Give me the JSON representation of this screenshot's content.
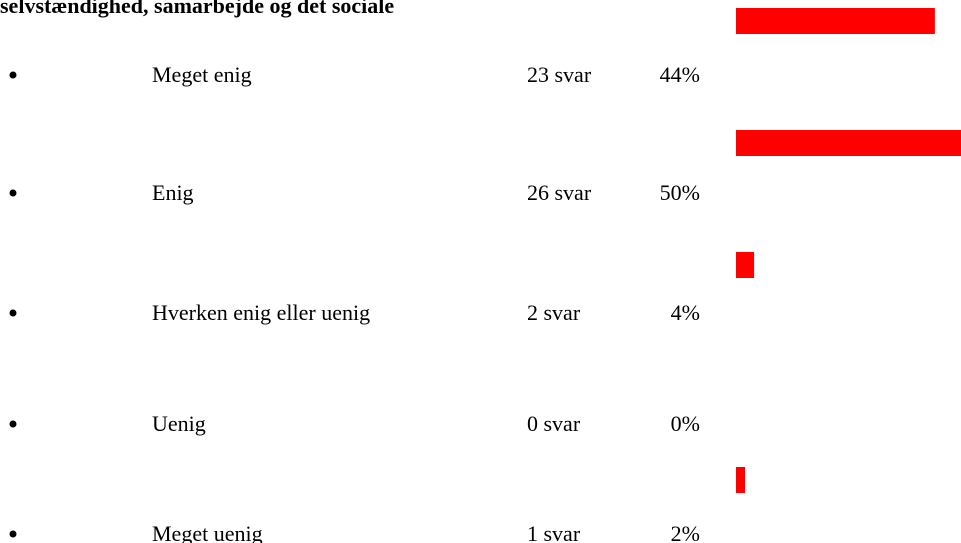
{
  "title": "selvstændighed, samarbejde og det sociale",
  "bar_color": "#ff0000",
  "items": [
    {
      "label": "Meget enig",
      "answers": "23 svar",
      "percent": 44,
      "percent_label": "44%"
    },
    {
      "label": "Enig",
      "answers": "26 svar",
      "percent": 50,
      "percent_label": "50%"
    },
    {
      "label": "Hverken enig eller uenig",
      "answers": "2 svar",
      "percent": 4,
      "percent_label": "4%"
    },
    {
      "label": "Uenig",
      "answers": "0 svar",
      "percent": 0,
      "percent_label": "0%"
    },
    {
      "label": "Meget uenig",
      "answers": "1 svar",
      "percent": 2,
      "percent_label": "2%"
    }
  ]
}
